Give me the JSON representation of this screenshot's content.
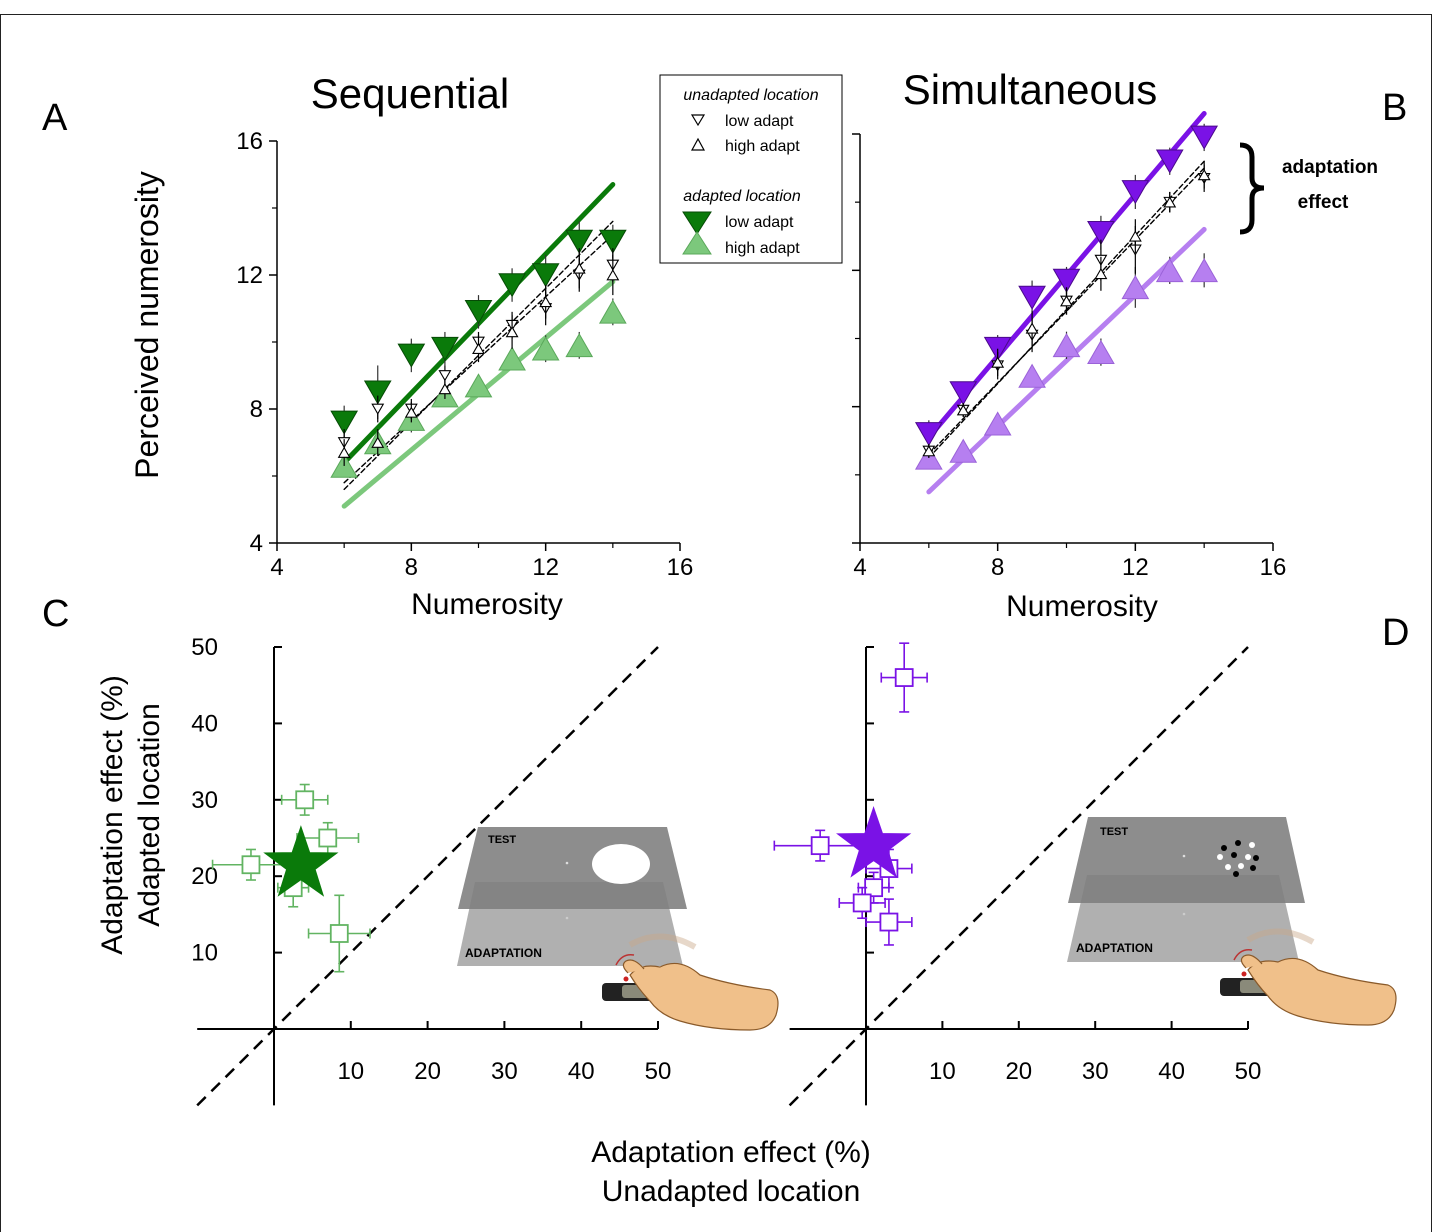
{
  "panel_letters": {
    "A": "A",
    "B": "B",
    "C": "C",
    "D": "D"
  },
  "colors": {
    "green_dark": "#0a7a0a",
    "green_light": "#7cc87c",
    "purple_dark": "#7a12e6",
    "purple_light": "#b67ff0",
    "tray_dark": "#7d7d7d",
    "tray_light": "#a9a9a9"
  },
  "legend": {
    "group1_title": "unadapted location",
    "group1_items": [
      "low adapt",
      "high adapt"
    ],
    "group2_title": "adapted location",
    "group2_items": [
      "low adapt",
      "high adapt"
    ]
  },
  "annotation": {
    "line1": "adaptation",
    "line2": "effect"
  },
  "icons": [
    "right-curly-brace-icon",
    "hand-pressing-button-icon",
    "star-marker-icon"
  ],
  "insets": {
    "sequential": {
      "top_label": "TEST",
      "bottom_label": "ADAPTATION",
      "stimulus": "white disc"
    },
    "simultaneous": {
      "top_label": "TEST",
      "bottom_label": "ADAPTATION",
      "stimulus": "dot array"
    }
  },
  "shared_x_label": {
    "line1": "Adaptation effect (%)",
    "line2": "Unadapted location"
  },
  "shared_y_label_bottom": {
    "line1": "Adaptation effect (%)",
    "line2": "Adapted location"
  },
  "chart_data": [
    {
      "id": "A",
      "type": "scatter",
      "title": "Sequential",
      "xlabel": "Numerosity",
      "ylabel": "Perceived numerosity",
      "xlim": [
        4,
        16
      ],
      "ylim": [
        4,
        16
      ],
      "xticks": [
        4,
        8,
        12,
        16
      ],
      "yticks": [
        4,
        8,
        12,
        16
      ],
      "x": [
        6,
        7,
        8,
        9,
        10,
        11,
        12,
        13,
        14
      ],
      "series": [
        {
          "name": "low adapt",
          "group": "unadapted location",
          "values": [
            7.0,
            8.0,
            8.0,
            9.0,
            10.0,
            10.5,
            11.0,
            12.0,
            12.3
          ],
          "err": [
            0.4,
            0.4,
            0.3,
            0.3,
            0.3,
            0.4,
            0.5,
            0.5,
            0.5
          ],
          "fit": [
            5.6,
            13.6
          ]
        },
        {
          "name": "high adapt",
          "group": "unadapted location",
          "values": [
            6.7,
            7.0,
            7.9,
            8.6,
            9.8,
            10.3,
            11.2,
            12.2,
            12.0
          ],
          "err": [
            0.4,
            0.4,
            0.3,
            0.3,
            0.4,
            0.5,
            0.5,
            0.6,
            0.6
          ],
          "fit": [
            5.8,
            13.2
          ]
        },
        {
          "name": "low adapt",
          "group": "adapted location",
          "values": [
            7.6,
            8.5,
            9.6,
            9.8,
            10.9,
            11.7,
            12.0,
            13.0,
            13.0
          ],
          "err": [
            0.5,
            0.8,
            0.5,
            0.5,
            0.5,
            0.5,
            0.6,
            0.6,
            0.5
          ],
          "fit": [
            6.4,
            14.7
          ]
        },
        {
          "name": "high adapt",
          "group": "adapted location",
          "values": [
            6.3,
            7.0,
            7.7,
            8.4,
            8.7,
            9.5,
            9.8,
            9.9,
            10.9
          ],
          "err": [
            0.3,
            0.3,
            0.4,
            0.3,
            0.3,
            0.3,
            0.4,
            0.4,
            0.4
          ],
          "fit": [
            5.1,
            11.8
          ]
        }
      ]
    },
    {
      "id": "B",
      "type": "scatter",
      "title": "Simultaneous",
      "xlabel": "Numerosity",
      "ylabel": "",
      "xlim": [
        4,
        16
      ],
      "ylim": [
        4,
        16
      ],
      "xticks": [
        4,
        8,
        12,
        16
      ],
      "yticks": [
        4,
        8,
        12,
        16
      ],
      "x": [
        6,
        7,
        8,
        9,
        10,
        11,
        12,
        13,
        14
      ],
      "series": [
        {
          "name": "low adapt",
          "group": "unadapted location",
          "values": [
            6.7,
            7.9,
            9.2,
            10.1,
            11.1,
            12.3,
            12.6,
            14.0,
            14.7
          ],
          "err": [
            0.2,
            0.2,
            0.4,
            0.5,
            0.4,
            0.6,
            0.7,
            0.3,
            0.4
          ],
          "fit": [
            6.6,
            15.0
          ]
        },
        {
          "name": "high adapt",
          "group": "unadapted location",
          "values": [
            6.7,
            7.9,
            9.3,
            10.3,
            11.1,
            11.9,
            13.0,
            14.0,
            14.8
          ],
          "err": [
            0.2,
            0.2,
            0.4,
            0.5,
            0.4,
            0.5,
            0.5,
            0.3,
            0.4
          ],
          "fit": [
            6.5,
            15.2
          ]
        },
        {
          "name": "low adapt",
          "group": "adapted location",
          "values": [
            7.2,
            8.4,
            9.7,
            11.2,
            11.7,
            13.1,
            14.3,
            15.2,
            15.9
          ],
          "err": [
            0.4,
            0.3,
            0.4,
            0.5,
            0.4,
            0.5,
            0.5,
            0.4,
            0.4
          ],
          "fit": [
            7.1,
            16.6
          ]
        },
        {
          "name": "high adapt",
          "group": "adapted location",
          "values": [
            6.5,
            6.7,
            7.5,
            8.9,
            9.8,
            9.6,
            11.5,
            12.0,
            12.0
          ],
          "err": [
            0.3,
            0.3,
            0.3,
            0.3,
            0.4,
            0.4,
            0.6,
            0.4,
            0.5
          ],
          "fit": [
            5.5,
            13.2
          ]
        }
      ]
    },
    {
      "id": "C",
      "type": "scatter",
      "xlim": [
        -10,
        50
      ],
      "ylim": [
        -10,
        50
      ],
      "xticks": [
        10,
        20,
        30,
        40,
        50
      ],
      "yticks": [
        10,
        20,
        30,
        40,
        50
      ],
      "identity_line": true,
      "points": [
        {
          "x": 4,
          "y": 30,
          "xerr": 3,
          "yerr": 2
        },
        {
          "x": 7,
          "y": 25,
          "xerr": 4,
          "yerr": 2
        },
        {
          "x": -3,
          "y": 21.5,
          "xerr": 5,
          "yerr": 2
        },
        {
          "x": 8.5,
          "y": 12.5,
          "xerr": 4,
          "yerr": 5
        },
        {
          "x": 2.5,
          "y": 18.5,
          "xerr": 2,
          "yerr": 2.5
        }
      ],
      "mean": {
        "x": 3.5,
        "y": 21.5
      }
    },
    {
      "id": "D",
      "type": "scatter",
      "xlim": [
        -10,
        50
      ],
      "ylim": [
        -10,
        50
      ],
      "xticks": [
        10,
        20,
        30,
        40,
        50
      ],
      "yticks": [
        10,
        20,
        30,
        40,
        50
      ],
      "identity_line": true,
      "points": [
        {
          "x": 5,
          "y": 46,
          "xerr": 3,
          "yerr": 4.5
        },
        {
          "x": -6,
          "y": 24,
          "xerr": 6,
          "yerr": 2
        },
        {
          "x": 3,
          "y": 21,
          "xerr": 3,
          "yerr": 2.5
        },
        {
          "x": 1,
          "y": 18.5,
          "xerr": 2,
          "yerr": 2
        },
        {
          "x": -0.5,
          "y": 16.5,
          "xerr": 3,
          "yerr": 2
        },
        {
          "x": 3,
          "y": 14,
          "xerr": 3,
          "yerr": 3
        }
      ],
      "mean": {
        "x": 1,
        "y": 24
      }
    }
  ]
}
